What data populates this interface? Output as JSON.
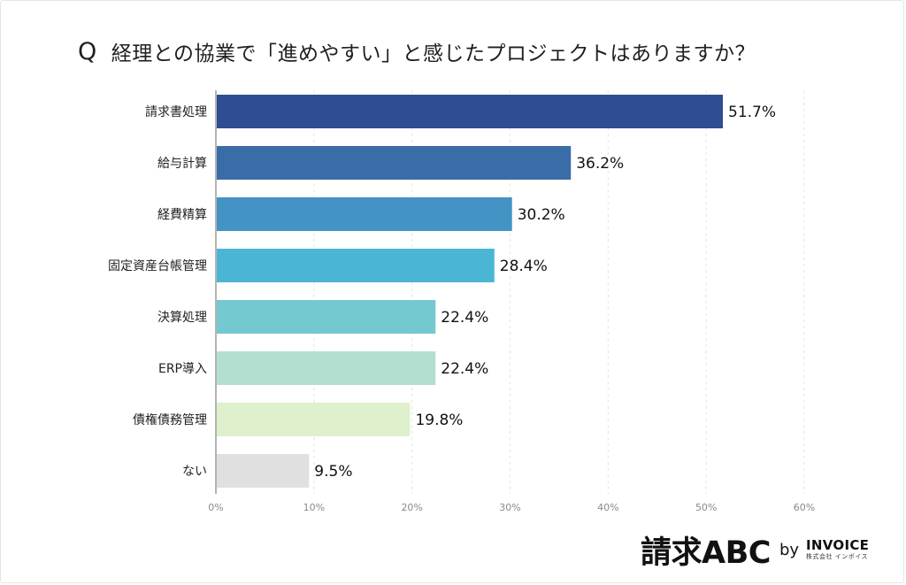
{
  "question": {
    "prefix": "Q",
    "text": "経理との協業で「進めやすい」と感じたプロジェクトはありますか？"
  },
  "chart_data": {
    "type": "bar",
    "orientation": "horizontal",
    "categories": [
      "請求書処理",
      "給与計算",
      "経費精算",
      "固定資産台帳管理",
      "決算処理",
      "ERP導入",
      "債権債務管理",
      "ない"
    ],
    "values": [
      51.7,
      36.2,
      30.2,
      28.4,
      22.4,
      22.4,
      19.8,
      9.5
    ],
    "value_labels": [
      "51.7%",
      "36.2%",
      "30.2%",
      "28.4%",
      "22.4%",
      "22.4%",
      "19.8%",
      "9.5%"
    ],
    "colors": [
      "#2e4d92",
      "#3a6ca8",
      "#4393c5",
      "#4bb5d6",
      "#74c8cf",
      "#b2dfd0",
      "#dff0cc",
      "#e0e0e0"
    ],
    "xlim": [
      0,
      60
    ],
    "x_ticks": [
      0,
      10,
      20,
      30,
      40,
      50,
      60
    ],
    "x_tick_labels": [
      "0%",
      "10%",
      "20%",
      "30%",
      "40%",
      "50%",
      "60%"
    ],
    "grid": "vertical-dashed"
  },
  "footer": {
    "logo_main": "請求ABC",
    "by": "by",
    "brand": "INVOICE",
    "brand_sub": "株式会社 インボイス"
  }
}
